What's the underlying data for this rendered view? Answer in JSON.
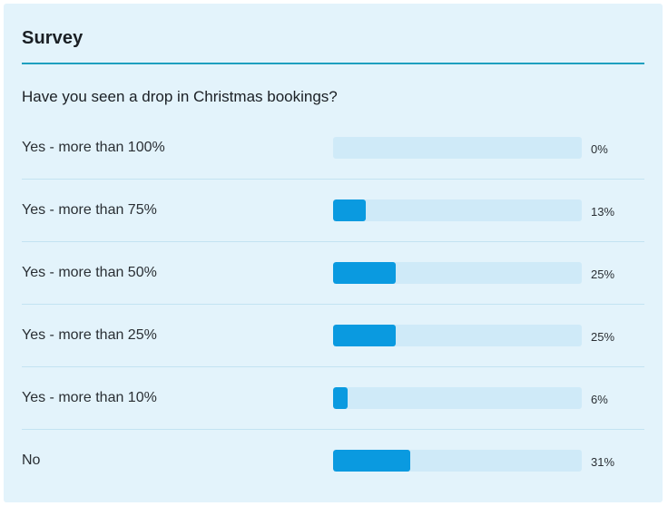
{
  "survey": {
    "title": "Survey",
    "question": "Have you seen a drop in Christmas bookings?",
    "accent_color": "#1e9fbf",
    "bar_color": "#0a9ae0",
    "track_color": "#cfeaf8",
    "options": [
      {
        "label": "Yes - more than 100%",
        "percent_text": "0%",
        "value": 0
      },
      {
        "label": "Yes - more than 75%",
        "percent_text": "13%",
        "value": 13
      },
      {
        "label": "Yes - more than 50%",
        "percent_text": "25%",
        "value": 25
      },
      {
        "label": "Yes - more than 25%",
        "percent_text": "25%",
        "value": 25
      },
      {
        "label": "Yes - more than 10%",
        "percent_text": "6%",
        "value": 6
      },
      {
        "label": "No",
        "percent_text": "31%",
        "value": 31
      }
    ]
  }
}
